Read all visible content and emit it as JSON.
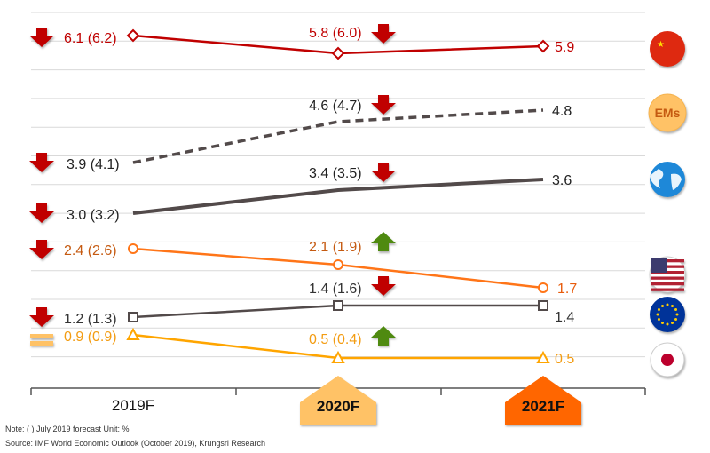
{
  "chart_data": {
    "type": "line",
    "categories": [
      "2019F",
      "2020F",
      "2021F"
    ],
    "grid": true,
    "series": [
      {
        "name": "China",
        "icon": "china-flag-icon",
        "color": "#c00000",
        "marker": "diamond",
        "dash": false,
        "values": [
          6.1,
          5.8,
          5.9
        ],
        "previous": [
          "6.2",
          "6.0",
          null
        ],
        "labels": [
          "6.1 (6.2)",
          "5.8 (6.0)",
          "5.9"
        ],
        "label_colors": [
          "#c00000",
          "#c00000",
          "#c00000"
        ],
        "arrows": [
          "down",
          "down",
          null
        ]
      },
      {
        "name": "EMs",
        "icon": "ems-badge-icon",
        "color": "#524a4a",
        "marker": "none",
        "dash": true,
        "values": [
          3.9,
          4.6,
          4.8
        ],
        "previous": [
          "4.1",
          "4.7",
          null
        ],
        "labels": [
          "3.9 (4.1)",
          "4.6 (4.7)",
          "4.8"
        ],
        "label_colors": [
          "#222222",
          "#222222",
          "#222222"
        ],
        "arrows": [
          "down",
          "down",
          null
        ]
      },
      {
        "name": "World",
        "icon": "globe-icon",
        "color": "#524a4a",
        "marker": "none",
        "dash": false,
        "values": [
          3.0,
          3.4,
          3.6
        ],
        "previous": [
          "3.2",
          "3.5",
          null
        ],
        "labels": [
          "3.0 (3.2)",
          "3.4 (3.5)",
          "3.6"
        ],
        "label_colors": [
          "#222222",
          "#222222",
          "#222222"
        ],
        "arrows": [
          "down",
          "down",
          null
        ]
      },
      {
        "name": "US",
        "icon": "us-flag-icon",
        "color": "#ff7518",
        "marker": "circle",
        "dash": false,
        "values": [
          2.4,
          2.1,
          1.7
        ],
        "previous": [
          "2.6",
          "1.9",
          null
        ],
        "labels": [
          "2.4 (2.6)",
          "2.1 (1.9)",
          "1.7"
        ],
        "label_colors": [
          "#c55a11",
          "#c55a11",
          "#e85c0d"
        ],
        "arrows": [
          "down",
          "up",
          null
        ]
      },
      {
        "name": "Eurozone",
        "icon": "eu-flag-icon",
        "color": "#524a4a",
        "marker": "square",
        "dash": false,
        "values": [
          1.2,
          1.4,
          1.4
        ],
        "previous": [
          "1.3",
          "1.6",
          null
        ],
        "labels": [
          "1.2 (1.3)",
          "1.4 (1.6)",
          "1.4"
        ],
        "label_colors": [
          "#333333",
          "#333333",
          "#333333"
        ],
        "arrows": [
          "down",
          "down",
          null
        ]
      },
      {
        "name": "Japan",
        "icon": "japan-flag-icon",
        "color": "#ffa500",
        "marker": "triangle",
        "dash": false,
        "values": [
          0.9,
          0.5,
          0.5
        ],
        "previous": [
          "0.9",
          "0.4",
          null
        ],
        "labels": [
          "0.9 (0.9)",
          "0.5 (0.4)",
          "0.5"
        ],
        "label_colors": [
          "#f39c12",
          "#f39c12",
          "#f39c12"
        ],
        "arrows": [
          "equal",
          "up",
          null
        ]
      }
    ],
    "ems_badge_text": "EMs",
    "highlight_colors": [
      "#ffc266",
      "#ff6600"
    ],
    "arrow_colors": {
      "down": "#c00000",
      "up": "#4f8a10",
      "equal": "#ffc266"
    }
  },
  "footer": {
    "note": "Note: (   ) July 2019 forecast        Unit: %",
    "source": "Source: IMF World Economic Outlook (October 2019), Krungsri Research"
  }
}
